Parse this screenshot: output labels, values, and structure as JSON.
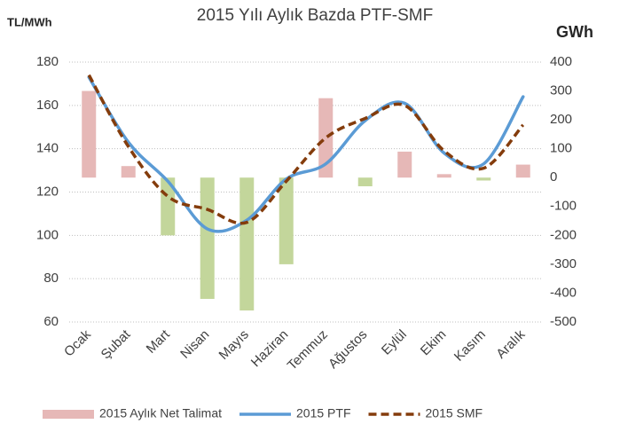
{
  "chart_data": {
    "type": "combo",
    "title": "2015 Yılı Aylık Bazda PTF-SMF",
    "y_label": "TL/MWh",
    "y2_label": "GWh",
    "categories": [
      "Ocak",
      "Şubat",
      "Mart",
      "Nisan",
      "Mayıs",
      "Haziran",
      "Temmuz",
      "Ağustos",
      "Eylül",
      "Ekim",
      "Kasım",
      "Aralık"
    ],
    "ylim": [
      60,
      180
    ],
    "yticks": [
      60,
      80,
      100,
      120,
      140,
      160,
      180
    ],
    "y2lim": [
      -500,
      400
    ],
    "y2ticks": [
      -500,
      -400,
      -300,
      -200,
      -100,
      0,
      100,
      200,
      300,
      400
    ],
    "grid": true,
    "legend": "bottom",
    "series": [
      {
        "name": "2015 Aylık Net Talimat",
        "type": "bar",
        "axis": "y2",
        "color": "#e6b8b7",
        "negative_color": "#c3d69b",
        "values": [
          300,
          40,
          -200,
          -420,
          -460,
          -300,
          275,
          -30,
          90,
          12,
          -10,
          45
        ]
      },
      {
        "name": "2015 PTF",
        "type": "line",
        "color": "#5b9bd5",
        "dashed": false,
        "values": [
          173,
          143,
          125,
          103,
          107,
          126,
          133,
          153,
          161,
          138,
          133,
          164
        ]
      },
      {
        "name": "2015 SMF",
        "type": "line",
        "color": "#843c0c",
        "dashed": true,
        "values": [
          174,
          141,
          118,
          112,
          106,
          125,
          145,
          154,
          160,
          139,
          131,
          151
        ]
      }
    ]
  }
}
